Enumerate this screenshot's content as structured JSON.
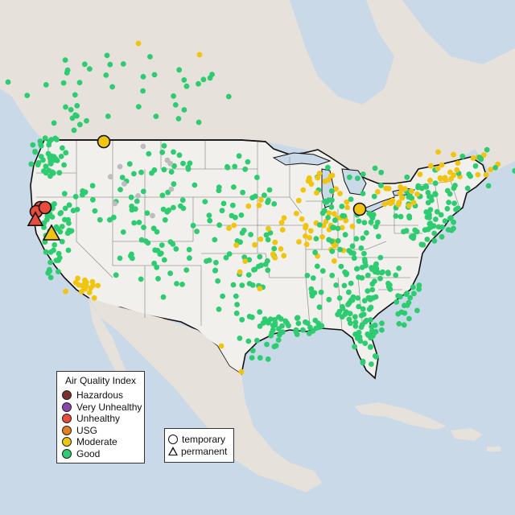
{
  "legend": {
    "title": "Air Quality Index",
    "categories": [
      {
        "label": "Hazardous",
        "color": "#7e2d2d"
      },
      {
        "label": "Very Unhealthy",
        "color": "#8e44ad"
      },
      {
        "label": "Unhealthy",
        "color": "#e74c3c"
      },
      {
        "label": "USG",
        "color": "#e67e22"
      },
      {
        "label": "Moderate",
        "color": "#f1c40f"
      },
      {
        "label": "Good",
        "color": "#2ecc71"
      }
    ]
  },
  "shape_legend": {
    "temporary": "temporary",
    "permanent": "permanent"
  },
  "colors": {
    "ocean": "#c9d9e8",
    "land": "#e8e3dc",
    "us_land": "#f0eeea",
    "border": "#111111",
    "state_line": "#9a9a9a",
    "no_data": "#bdbdbd"
  }
}
